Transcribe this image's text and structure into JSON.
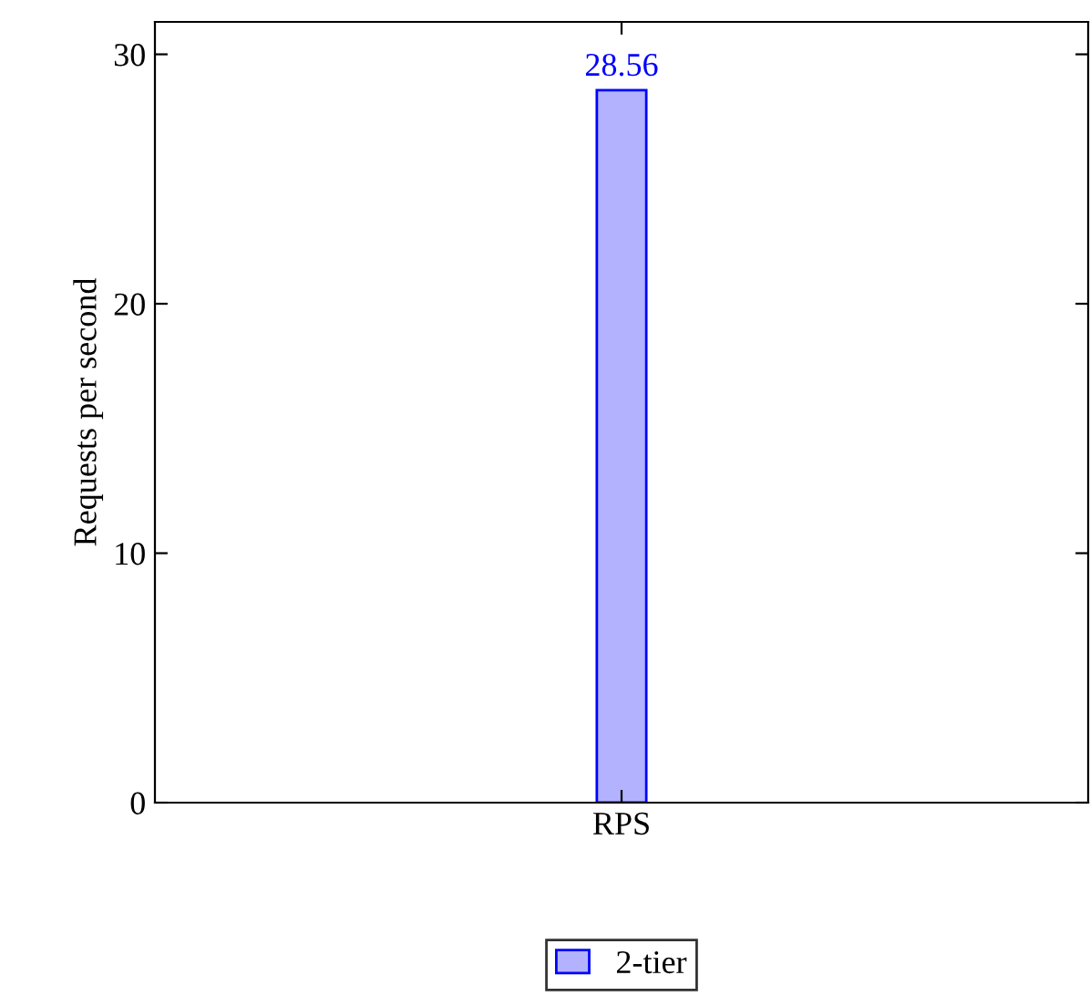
{
  "chart_data": {
    "type": "bar",
    "ylabel": "Requests per second",
    "categories": [
      "RPS"
    ],
    "series": [
      {
        "name": "2-tier",
        "color": "#0000ff",
        "values": [
          28.56
        ]
      }
    ],
    "data_labels": true,
    "ylim": [
      0,
      31.3
    ],
    "yticks": [
      0,
      10,
      20,
      30
    ],
    "grid": false,
    "legend": "bottom"
  }
}
